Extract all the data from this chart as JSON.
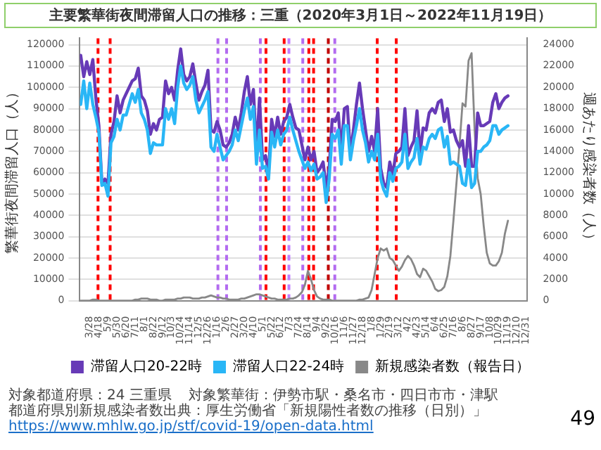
{
  "chart_data": {
    "type": "line",
    "title": "主要繁華街夜間滞留人口の推移：三重（2020年3月1日～2022年11月19日）",
    "ylabel": "繁華街夜間滞留人口（人）",
    "y2label": "週あたり感染者数（人）",
    "x": [
      "2020-03-07",
      "2020-03-14",
      "2020-03-21",
      "2020-03-28",
      "2020-04-04",
      "2020-04-11",
      "2020-04-18",
      "2020-04-25",
      "2020-05-02",
      "2020-05-09",
      "2020-05-16",
      "2020-05-23",
      "2020-05-30",
      "2020-06-06",
      "2020-06-13",
      "2020-06-20",
      "2020-06-27",
      "2020-07-04",
      "2020-07-11",
      "2020-07-18",
      "2020-07-25",
      "2020-08-01",
      "2020-08-08",
      "2020-08-15",
      "2020-08-22",
      "2020-08-29",
      "2020-09-05",
      "2020-09-12",
      "2020-09-19",
      "2020-09-26",
      "2020-10-03",
      "2020-10-10",
      "2020-10-17",
      "2020-10-24",
      "2020-10-31",
      "2020-11-07",
      "2020-11-14",
      "2020-11-21",
      "2020-11-28",
      "2020-12-05",
      "2020-12-12",
      "2020-12-19",
      "2020-12-26",
      "2021-01-02",
      "2021-01-09",
      "2021-01-16",
      "2021-01-23",
      "2021-01-30",
      "2021-02-06",
      "2021-02-13",
      "2021-02-20",
      "2021-02-27",
      "2021-03-06",
      "2021-03-13",
      "2021-03-20",
      "2021-03-27",
      "2021-04-03",
      "2021-04-10",
      "2021-04-17",
      "2021-04-24",
      "2021-05-01",
      "2021-05-08",
      "2021-05-15",
      "2021-05-22",
      "2021-05-29",
      "2021-06-05",
      "2021-06-12",
      "2021-06-19",
      "2021-06-26",
      "2021-07-03",
      "2021-07-10",
      "2021-07-17",
      "2021-07-24",
      "2021-07-31",
      "2021-08-07",
      "2021-08-14",
      "2021-08-21",
      "2021-08-28",
      "2021-09-04",
      "2021-09-11",
      "2021-09-18",
      "2021-09-25",
      "2021-10-02",
      "2021-10-09",
      "2021-10-16",
      "2021-10-23",
      "2021-10-30",
      "2021-11-06",
      "2021-11-13",
      "2021-11-20",
      "2021-11-27",
      "2021-12-04",
      "2021-12-11",
      "2021-12-18",
      "2021-12-25",
      "2022-01-01",
      "2022-01-08",
      "2022-01-15",
      "2022-01-22",
      "2022-01-29",
      "2022-02-05",
      "2022-02-12",
      "2022-02-19",
      "2022-02-26",
      "2022-03-05",
      "2022-03-12",
      "2022-03-19",
      "2022-03-26",
      "2022-04-02",
      "2022-04-09",
      "2022-04-16",
      "2022-04-23",
      "2022-04-30",
      "2022-05-07",
      "2022-05-14",
      "2022-05-21",
      "2022-05-28",
      "2022-06-04",
      "2022-06-11",
      "2022-06-18",
      "2022-06-25",
      "2022-07-02",
      "2022-07-09",
      "2022-07-16",
      "2022-07-23",
      "2022-07-30",
      "2022-08-06",
      "2022-08-13",
      "2022-08-20",
      "2022-08-27",
      "2022-09-03",
      "2022-09-10",
      "2022-09-17",
      "2022-09-24",
      "2022-10-01",
      "2022-10-08",
      "2022-10-15",
      "2022-10-22",
      "2022-10-29",
      "2022-11-05",
      "2022-11-12",
      "2022-11-19"
    ],
    "series": [
      {
        "name": "滞留人口20-22時",
        "color": "#673ab7",
        "values": [
          115000,
          105000,
          112000,
          106000,
          113000,
          95000,
          82000,
          55000,
          57000,
          55000,
          78000,
          84000,
          96000,
          88000,
          94000,
          97000,
          100000,
          103000,
          104000,
          109000,
          96000,
          94000,
          89000,
          78000,
          83000,
          80000,
          85000,
          86000,
          103000,
          97000,
          100000,
          94000,
          108000,
          118000,
          106000,
          103000,
          105000,
          111000,
          102000,
          94000,
          98000,
          101000,
          108000,
          80000,
          79000,
          84000,
          80000,
          73000,
          72000,
          74000,
          78000,
          86000,
          80000,
          88000,
          98000,
          105000,
          92000,
          99000,
          70000,
          95000,
          66000,
          68000,
          60000,
          85000,
          77000,
          86000,
          78000,
          84000,
          86000,
          92000,
          86000,
          81000,
          80000,
          73000,
          66000,
          72000,
          66000,
          70000,
          60000,
          62000,
          65000,
          53000,
          62000,
          85000,
          84000,
          88000,
          70000,
          90000,
          91000,
          69000,
          80000,
          92000,
          102000,
          90000,
          80000,
          70000,
          77000,
          70000,
          90000,
          62000,
          55000,
          53000,
          65000,
          59000,
          69000,
          70000,
          72000,
          90000,
          68000,
          72000,
          75000,
          89000,
          69000,
          81000,
          80000,
          88000,
          90000,
          88000,
          93000,
          94000,
          84000,
          90000,
          79000,
          80000,
          75000,
          72000,
          75000,
          63000,
          82000,
          63000,
          63000,
          88000,
          82000,
          82000,
          83000,
          84000,
          93000,
          97000,
          90000,
          93000,
          95000,
          96000
        ]
      },
      {
        "name": "滞留人口22-24時",
        "color": "#29b6f6",
        "values": [
          92000,
          103000,
          90000,
          102000,
          92000,
          86000,
          79000,
          54000,
          55000,
          49000,
          74000,
          77000,
          85000,
          80000,
          87000,
          87000,
          92000,
          97000,
          93000,
          99000,
          88000,
          85000,
          80000,
          69000,
          74000,
          73000,
          73000,
          73000,
          90000,
          85000,
          90000,
          83000,
          100000,
          110000,
          102000,
          99000,
          101000,
          105000,
          94000,
          88000,
          91000,
          94000,
          98000,
          72000,
          70000,
          78000,
          72000,
          66000,
          68000,
          70000,
          73000,
          80000,
          75000,
          82000,
          89000,
          95000,
          85000,
          91000,
          64000,
          80000,
          62000,
          63000,
          57000,
          79000,
          72000,
          80000,
          73000,
          78000,
          80000,
          86000,
          80000,
          75000,
          70000,
          66000,
          62000,
          65000,
          61000,
          64000,
          57000,
          58000,
          60000,
          46000,
          57000,
          78000,
          76000,
          80000,
          64000,
          82000,
          82000,
          66000,
          75000,
          82000,
          90000,
          80000,
          74000,
          65000,
          70000,
          66000,
          78000,
          57000,
          52000,
          49000,
          60000,
          56000,
          62000,
          63000,
          65000,
          78000,
          62000,
          65000,
          67000,
          76000,
          64000,
          72000,
          71000,
          76000,
          78000,
          76000,
          80000,
          81000,
          72000,
          77000,
          64000,
          65000,
          64000,
          63000,
          55000,
          54000,
          66000,
          53000,
          55000,
          70000,
          70000,
          72000,
          73000,
          75000,
          82000,
          82000,
          78000,
          80000,
          81000,
          82000
        ]
      },
      {
        "name": "新規感染者数（報告日）",
        "color": "#888888",
        "axis": "y2",
        "values": [
          0,
          0,
          0,
          0,
          100,
          100,
          0,
          0,
          0,
          0,
          0,
          0,
          0,
          0,
          0,
          0,
          0,
          0,
          100,
          100,
          200,
          200,
          200,
          100,
          100,
          100,
          0,
          0,
          100,
          100,
          100,
          100,
          200,
          200,
          300,
          300,
          300,
          200,
          200,
          200,
          300,
          300,
          400,
          500,
          400,
          300,
          300,
          200,
          200,
          100,
          100,
          100,
          100,
          200,
          200,
          300,
          400,
          500,
          600,
          600,
          500,
          400,
          300,
          200,
          200,
          100,
          100,
          100,
          100,
          200,
          200,
          300,
          500,
          800,
          1500,
          2800,
          2000,
          1000,
          400,
          200,
          100,
          100,
          100,
          0,
          0,
          0,
          0,
          0,
          0,
          0,
          0,
          0,
          100,
          100,
          200,
          300,
          1000,
          2500,
          4000,
          4900,
          4700,
          4900,
          4000,
          3800,
          3300,
          2800,
          3200,
          3800,
          4200,
          3900,
          3300,
          2500,
          2200,
          3000,
          2800,
          2300,
          1800,
          1100,
          900,
          1000,
          1300,
          2300,
          4200,
          7500,
          11000,
          14500,
          18500,
          18200,
          22500,
          23200,
          16000,
          11500,
          10000,
          7000,
          4500,
          3500,
          3300,
          3300,
          3700,
          4500,
          6300,
          7500
        ]
      }
    ],
    "xlim": [
      "2020-03-05",
      "2023-01-03"
    ],
    "xticks": [
      {
        "value": "2020-03-28",
        "label": "3/28"
      },
      {
        "value": "2020-04-18",
        "label": "4/18"
      },
      {
        "value": "2020-05-09",
        "label": "5/9"
      },
      {
        "value": "2020-05-30",
        "label": "5/30"
      },
      {
        "value": "2020-06-20",
        "label": "6/20"
      },
      {
        "value": "2020-07-11",
        "label": "7/11"
      },
      {
        "value": "2020-08-01",
        "label": "8/1"
      },
      {
        "value": "2020-08-22",
        "label": "8/22"
      },
      {
        "value": "2020-09-12",
        "label": "9/12"
      },
      {
        "value": "2020-10-03",
        "label": "10/3"
      },
      {
        "value": "2020-10-24",
        "label": "10/24"
      },
      {
        "value": "2020-11-14",
        "label": "11/14"
      },
      {
        "value": "2020-12-05",
        "label": "12/5"
      },
      {
        "value": "2020-12-26",
        "label": "12/26"
      },
      {
        "value": "2021-01-16",
        "label": "1/16"
      },
      {
        "value": "2021-02-06",
        "label": "2/6"
      },
      {
        "value": "2021-02-27",
        "label": "2/27"
      },
      {
        "value": "2021-03-20",
        "label": "3/20"
      },
      {
        "value": "2021-04-10",
        "label": "4/10"
      },
      {
        "value": "2021-05-01",
        "label": "5/1"
      },
      {
        "value": "2021-05-22",
        "label": "5/22"
      },
      {
        "value": "2021-06-12",
        "label": "6/12"
      },
      {
        "value": "2021-07-03",
        "label": "7/3"
      },
      {
        "value": "2021-07-24",
        "label": "7/24"
      },
      {
        "value": "2021-08-14",
        "label": "8/14"
      },
      {
        "value": "2021-09-04",
        "label": "9/4"
      },
      {
        "value": "2021-09-25",
        "label": "9/25"
      },
      {
        "value": "2021-10-16",
        "label": "10/16"
      },
      {
        "value": "2021-11-06",
        "label": "11/6"
      },
      {
        "value": "2021-11-27",
        "label": "11/27"
      },
      {
        "value": "2021-12-18",
        "label": "12/18"
      },
      {
        "value": "2022-01-08",
        "label": "1/8"
      },
      {
        "value": "2022-01-29",
        "label": "1/29"
      },
      {
        "value": "2022-02-19",
        "label": "2/19"
      },
      {
        "value": "2022-03-12",
        "label": "3/12"
      },
      {
        "value": "2022-04-02",
        "label": "4/2"
      },
      {
        "value": "2022-04-23",
        "label": "4/23"
      },
      {
        "value": "2022-05-14",
        "label": "5/14"
      },
      {
        "value": "2022-06-04",
        "label": "6/4"
      },
      {
        "value": "2022-06-25",
        "label": "6/25"
      },
      {
        "value": "2022-07-16",
        "label": "7/16"
      },
      {
        "value": "2022-08-06",
        "label": "8/6"
      },
      {
        "value": "2022-08-27",
        "label": "8/27"
      },
      {
        "value": "2022-09-17",
        "label": "9/17"
      },
      {
        "value": "2022-10-08",
        "label": "10/8"
      },
      {
        "value": "2022-10-29",
        "label": "10/29"
      },
      {
        "value": "2022-11-19",
        "label": "11/19"
      },
      {
        "value": "2022-12-10",
        "label": "12/10"
      },
      {
        "value": "2022-12-31",
        "label": "12/31"
      }
    ],
    "ylim": [
      0,
      123000
    ],
    "yticks": [
      0,
      10000,
      20000,
      30000,
      40000,
      50000,
      60000,
      70000,
      80000,
      90000,
      100000,
      110000,
      120000
    ],
    "y2lim": [
      0,
      24600
    ],
    "y2ticks": [
      0,
      2000,
      4000,
      6000,
      8000,
      10000,
      12000,
      14000,
      16000,
      18000,
      20000,
      22000,
      24000
    ],
    "ref_lines": [
      {
        "axis": "x",
        "value": "2020-04-16",
        "color": "#ff0000",
        "line_style": "dashed"
      },
      {
        "axis": "x",
        "value": "2020-05-14",
        "color": "#ff0000",
        "line_style": "dashed"
      },
      {
        "axis": "x",
        "value": "2021-01-18",
        "color": "#b36bf0",
        "line_style": "dashed"
      },
      {
        "axis": "x",
        "value": "2021-02-07",
        "color": "#b36bf0",
        "line_style": "dashed"
      },
      {
        "axis": "x",
        "value": "2021-04-26",
        "color": "#b36bf0",
        "line_style": "dashed"
      },
      {
        "axis": "x",
        "value": "2021-05-09",
        "color": "#ff0000",
        "line_style": "dashed"
      },
      {
        "axis": "x",
        "value": "2021-06-20",
        "color": "#ff0000",
        "line_style": "dashed"
      },
      {
        "axis": "x",
        "value": "2021-07-01",
        "color": "#c080ff",
        "line_style": "dashed"
      },
      {
        "axis": "x",
        "value": "2021-08-02",
        "color": "#b36bf0",
        "line_style": "dashed"
      },
      {
        "axis": "x",
        "value": "2021-08-16",
        "color": "#ff0000",
        "line_style": "dashed"
      },
      {
        "axis": "x",
        "value": "2021-08-27",
        "color": "#ff0000",
        "line_style": "dashed"
      },
      {
        "axis": "x",
        "value": "2021-09-30",
        "color": "#c00000",
        "line_style": "dashed"
      },
      {
        "axis": "x",
        "value": "2021-10-15",
        "color": "#b36bf0",
        "line_style": "dashed"
      },
      {
        "axis": "x",
        "value": "2022-01-21",
        "color": "#ff0000",
        "line_style": "dashed"
      },
      {
        "axis": "x",
        "value": "2022-03-06",
        "color": "#ff0000",
        "line_style": "dashed"
      }
    ],
    "grid": "y",
    "legend": "bottom",
    "marker": "none",
    "line_style": "solid",
    "annotations": [
      "対象都道府県：24 三重県",
      "対象繁華街：伊勢市駅・桑名市・四日市市・津駅",
      "都道府県別新規感染者数出典：厚生労働省「新規陽性者数の推移（日別）」",
      "https://www.mhlw.go.jp/stf/covid-19/open-data.html",
      "49"
    ]
  }
}
